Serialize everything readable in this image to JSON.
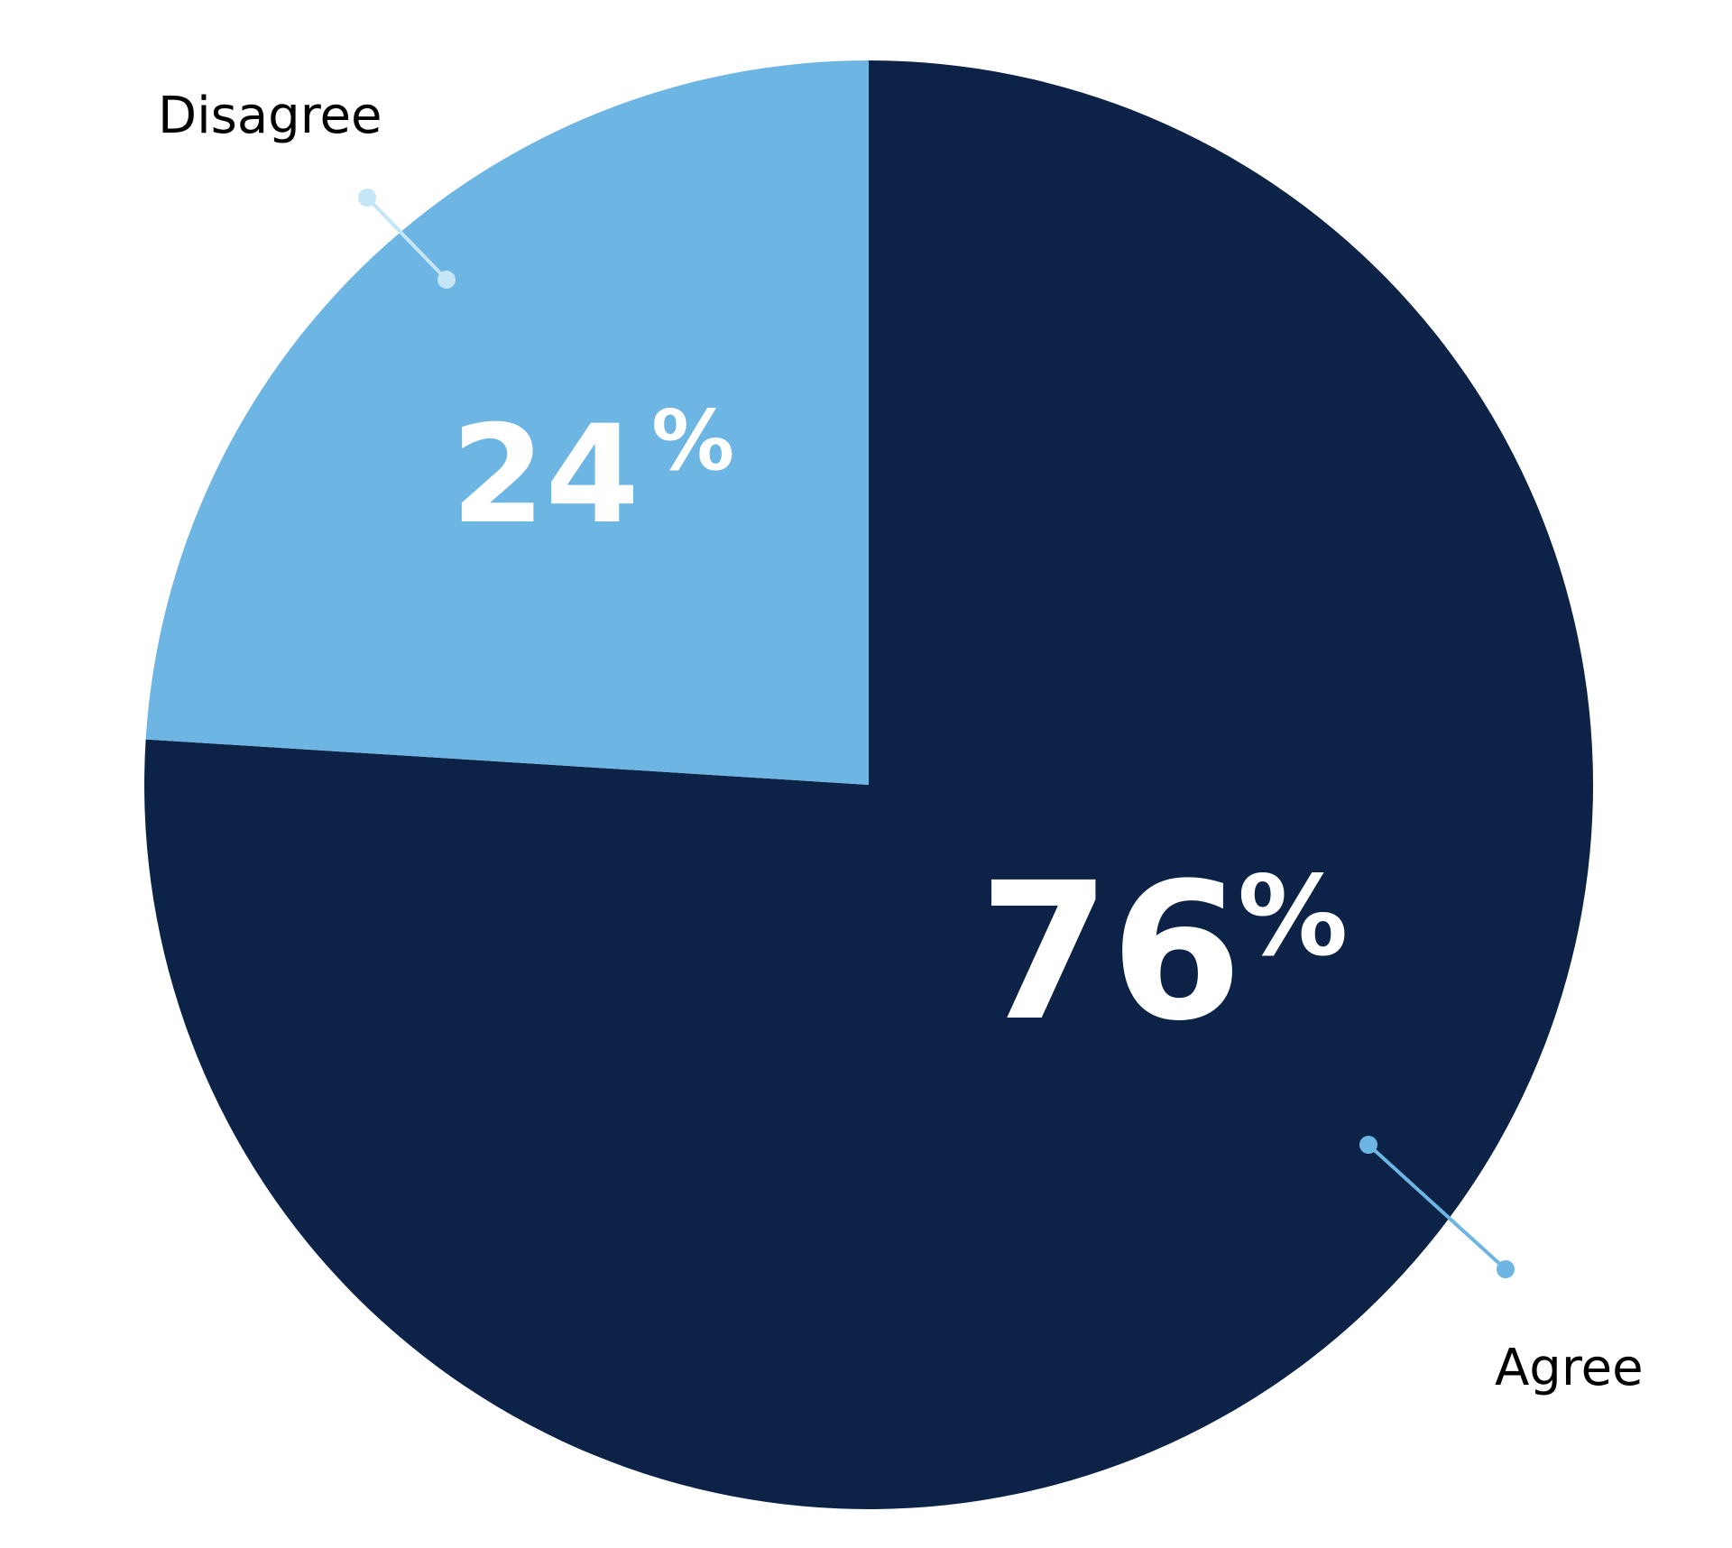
{
  "chart_data": {
    "type": "pie",
    "slices": [
      {
        "label": "Agree",
        "value": 76,
        "display": "76",
        "unit": "%",
        "color": "#0c2347",
        "leader_color": "#6db5e2"
      },
      {
        "label": "Disagree",
        "value": 24,
        "display": "24",
        "unit": "%",
        "color": "#6db5e2",
        "leader_color": "#c5e6f7"
      }
    ],
    "start": "12 o'clock",
    "direction": "clockwise",
    "legend": "none",
    "labels": "outside with leader lines"
  }
}
